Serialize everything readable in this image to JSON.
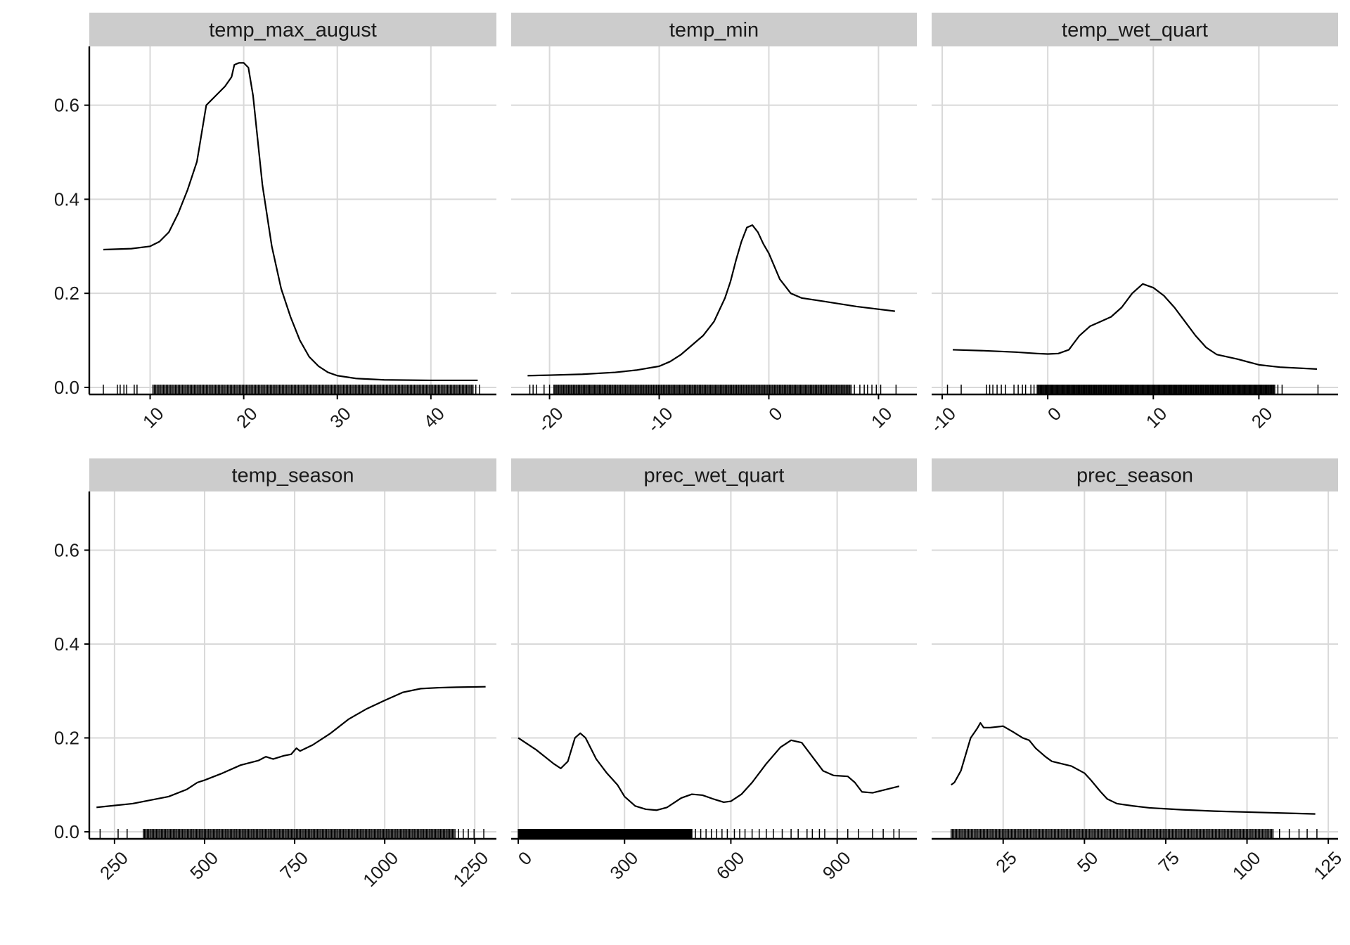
{
  "chart_data": [
    {
      "type": "line",
      "title": "temp_max_august",
      "xlim": [
        3.5,
        47
      ],
      "ylim": [
        -0.015,
        0.725
      ],
      "xticks": [
        10,
        20,
        30,
        40
      ],
      "yticks": [
        0.0,
        0.2,
        0.4,
        0.6
      ],
      "ytick_labels": [
        "0.0",
        "0.2",
        "0.4",
        "0.6"
      ],
      "x": [
        5,
        8,
        10,
        11,
        12,
        13,
        14,
        15,
        16,
        16.5,
        17,
        18,
        18.7,
        19,
        19.5,
        20,
        20.5,
        21,
        22,
        23,
        24,
        25,
        26,
        27,
        28,
        29,
        30,
        32,
        35,
        40,
        45
      ],
      "values": [
        0.293,
        0.295,
        0.3,
        0.31,
        0.33,
        0.37,
        0.42,
        0.48,
        0.6,
        0.61,
        0.62,
        0.64,
        0.66,
        0.686,
        0.69,
        0.69,
        0.68,
        0.62,
        0.43,
        0.3,
        0.21,
        0.15,
        0.1,
        0.065,
        0.045,
        0.032,
        0.025,
        0.019,
        0.016,
        0.015,
        0.015
      ],
      "rug": {
        "sparse": [
          5,
          6.5,
          6.8,
          7.2,
          7.5,
          8.3,
          8.6
        ],
        "dense_from": 10.3,
        "dense_to": 44.5,
        "extra": [
          44.8,
          45.2
        ]
      }
    },
    {
      "type": "line",
      "title": "temp_min",
      "xlim": [
        -23.5,
        13.5
      ],
      "ylim": [
        -0.015,
        0.725
      ],
      "xticks": [
        -20,
        -10,
        0,
        10
      ],
      "yticks": [
        0.0,
        0.2,
        0.4,
        0.6
      ],
      "ytick_labels": [
        "0.0",
        "0.2",
        "0.4",
        "0.6"
      ],
      "x": [
        -22,
        -20,
        -17,
        -14,
        -12,
        -10,
        -9,
        -8,
        -7,
        -6,
        -5,
        -4,
        -3.5,
        -3,
        -2.5,
        -2,
        -1.5,
        -1,
        -0.5,
        0,
        1,
        2,
        3,
        5,
        8,
        11.5
      ],
      "values": [
        0.025,
        0.026,
        0.028,
        0.032,
        0.037,
        0.045,
        0.055,
        0.07,
        0.09,
        0.11,
        0.14,
        0.19,
        0.225,
        0.27,
        0.31,
        0.34,
        0.345,
        0.33,
        0.305,
        0.285,
        0.23,
        0.2,
        0.19,
        0.183,
        0.172,
        0.162
      ],
      "rug": {
        "sparse": [
          -21.8,
          -21.5,
          -21.2,
          -20.5,
          -20,
          -19.6
        ],
        "dense_from": -19.5,
        "dense_to": 7.5,
        "extra": [
          7.8,
          8.3,
          8.7,
          9.0,
          9.4,
          9.8,
          10.2,
          11.6
        ]
      }
    },
    {
      "type": "line",
      "title": "temp_wet_quart",
      "xlim": [
        -11,
        27.5
      ],
      "ylim": [
        -0.015,
        0.725
      ],
      "xticks": [
        -10,
        0,
        10,
        20
      ],
      "yticks": [
        0.0,
        0.2,
        0.4,
        0.6
      ],
      "ytick_labels": [
        "0.0",
        "0.2",
        "0.4",
        "0.6"
      ],
      "x": [
        -9,
        -6,
        -3,
        -1,
        0,
        1,
        2,
        3,
        4,
        5,
        6,
        7,
        8,
        9,
        10,
        11,
        12,
        13,
        14,
        15,
        16,
        18,
        20,
        22,
        25.5
      ],
      "values": [
        0.08,
        0.078,
        0.075,
        0.072,
        0.071,
        0.072,
        0.08,
        0.11,
        0.13,
        0.14,
        0.15,
        0.17,
        0.2,
        0.22,
        0.212,
        0.195,
        0.17,
        0.14,
        0.11,
        0.085,
        0.07,
        0.06,
        0.048,
        0.043,
        0.039
      ],
      "rug": {
        "sparse": [
          -9.5,
          -8.2,
          -5.8,
          -5.5,
          -5.2,
          -4.8,
          -4.4,
          -4.0,
          -3.2,
          -2.8,
          -2.4,
          -2.1,
          -1.6,
          -1.3
        ],
        "dense_from": -1,
        "dense_to": 21.5,
        "extra": [
          21.8,
          22.2,
          25.6
        ]
      }
    },
    {
      "type": "line",
      "title": "temp_season",
      "xlim": [
        180,
        1310
      ],
      "ylim": [
        -0.015,
        0.725
      ],
      "xticks": [
        250,
        500,
        750,
        1000,
        1250
      ],
      "yticks": [
        0.0,
        0.2,
        0.4,
        0.6
      ],
      "ytick_labels": [
        "0.0",
        "0.2",
        "0.4",
        "0.6"
      ],
      "x": [
        200,
        300,
        400,
        450,
        480,
        500,
        550,
        600,
        650,
        670,
        690,
        720,
        740,
        755,
        765,
        800,
        850,
        900,
        950,
        1000,
        1050,
        1100,
        1150,
        1200,
        1280
      ],
      "values": [
        0.052,
        0.06,
        0.075,
        0.09,
        0.105,
        0.11,
        0.125,
        0.142,
        0.152,
        0.16,
        0.155,
        0.162,
        0.165,
        0.178,
        0.172,
        0.185,
        0.21,
        0.24,
        0.262,
        0.28,
        0.297,
        0.305,
        0.307,
        0.308,
        0.309
      ],
      "rug": {
        "sparse": [
          210,
          260,
          285
        ],
        "dense_from": 330,
        "dense_to": 1195,
        "extra": [
          1205,
          1218,
          1232,
          1248,
          1275
        ]
      }
    },
    {
      "type": "line",
      "title": "prec_wet_quart",
      "xlim": [
        -20,
        1125
      ],
      "ylim": [
        -0.015,
        0.725
      ],
      "xticks": [
        0,
        300,
        600,
        900
      ],
      "yticks": [
        0.0,
        0.2,
        0.4,
        0.6
      ],
      "ytick_labels": [
        "0.0",
        "0.2",
        "0.4",
        "0.6"
      ],
      "x": [
        0,
        50,
        100,
        120,
        140,
        160,
        175,
        190,
        220,
        250,
        280,
        300,
        330,
        360,
        390,
        420,
        460,
        490,
        520,
        550,
        580,
        600,
        630,
        660,
        700,
        740,
        770,
        800,
        830,
        860,
        890,
        930,
        950,
        970,
        1000,
        1075
      ],
      "values": [
        0.2,
        0.175,
        0.145,
        0.135,
        0.15,
        0.2,
        0.21,
        0.2,
        0.155,
        0.125,
        0.1,
        0.075,
        0.055,
        0.048,
        0.046,
        0.052,
        0.072,
        0.08,
        0.078,
        0.07,
        0.063,
        0.065,
        0.08,
        0.105,
        0.145,
        0.18,
        0.195,
        0.19,
        0.16,
        0.13,
        0.12,
        0.118,
        0.105,
        0.085,
        0.083,
        0.097
      ],
      "rug": {
        "sparse": [],
        "dense_from": 0,
        "dense_to": 490,
        "extra": [
          500,
          515,
          530,
          545,
          560,
          575,
          590,
          610,
          625,
          640,
          660,
          680,
          700,
          720,
          745,
          770,
          790,
          815,
          830,
          850,
          865,
          900,
          930,
          960,
          1000,
          1030,
          1060,
          1075
        ]
      }
    },
    {
      "type": "line",
      "title": "prec_season",
      "xlim": [
        3,
        128
      ],
      "ylim": [
        -0.015,
        0.725
      ],
      "xticks": [
        25,
        50,
        75,
        100,
        125
      ],
      "yticks": [
        0.0,
        0.2,
        0.4,
        0.6
      ],
      "ytick_labels": [
        "0.0",
        "0.2",
        "0.4",
        "0.6"
      ],
      "x": [
        9,
        10,
        12,
        15,
        17,
        18,
        19,
        21,
        25,
        28,
        31,
        33,
        35,
        38,
        40,
        43,
        46,
        50,
        52,
        55,
        57,
        60,
        65,
        70,
        80,
        90,
        100,
        110,
        121
      ],
      "values": [
        0.1,
        0.105,
        0.13,
        0.2,
        0.22,
        0.232,
        0.222,
        0.222,
        0.225,
        0.213,
        0.2,
        0.195,
        0.178,
        0.16,
        0.15,
        0.145,
        0.14,
        0.125,
        0.11,
        0.085,
        0.07,
        0.06,
        0.055,
        0.051,
        0.047,
        0.044,
        0.042,
        0.04,
        0.038
      ],
      "rug": {
        "sparse": [],
        "dense_from": 9,
        "dense_to": 108,
        "extra": [
          110,
          113,
          116,
          118.5,
          121.5
        ]
      }
    }
  ]
}
